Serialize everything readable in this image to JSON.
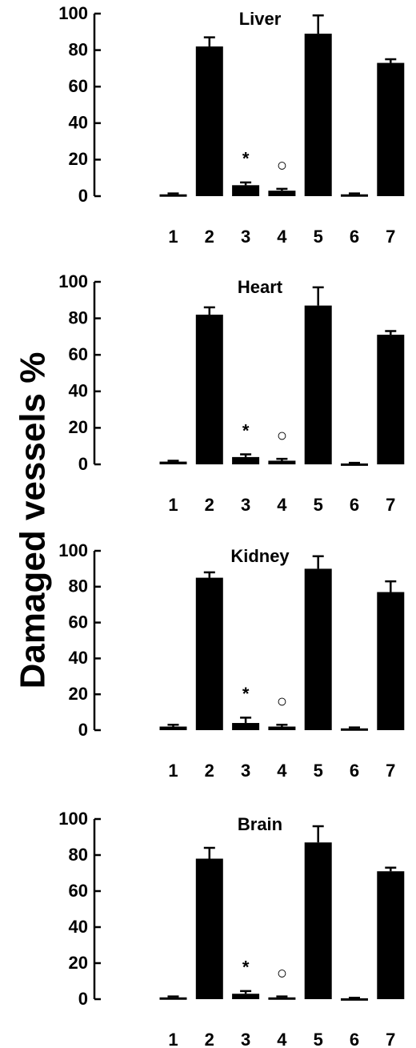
{
  "ylabel": "Damaged vessels %",
  "chart_data": [
    {
      "type": "bar",
      "title": "Liver",
      "categories": [
        "1",
        "2",
        "3",
        "4",
        "5",
        "6",
        "7"
      ],
      "values": [
        1,
        82,
        6,
        3,
        89,
        1,
        73
      ],
      "errors": [
        0.5,
        5,
        1.5,
        1,
        10,
        0.5,
        2
      ],
      "color": "#000000",
      "ylim": [
        0,
        100
      ],
      "yticks": [
        0,
        20,
        40,
        60,
        80,
        100
      ],
      "annotations": [
        {
          "text": "*",
          "x": "3"
        },
        {
          "text": "○",
          "x": "4"
        }
      ]
    },
    {
      "type": "bar",
      "title": "Heart",
      "categories": [
        "1",
        "2",
        "3",
        "4",
        "5",
        "6",
        "7"
      ],
      "values": [
        1.5,
        82,
        4,
        2,
        87,
        0.5,
        71
      ],
      "errors": [
        0.5,
        4,
        1.5,
        1,
        10,
        0.3,
        2
      ],
      "color": "#000000",
      "ylim": [
        0,
        100
      ],
      "yticks": [
        0,
        20,
        40,
        60,
        80,
        100
      ],
      "annotations": [
        {
          "text": "*",
          "x": "3"
        },
        {
          "text": "○",
          "x": "4"
        }
      ]
    },
    {
      "type": "bar",
      "title": "Kidney",
      "categories": [
        "1",
        "2",
        "3",
        "4",
        "5",
        "6",
        "7"
      ],
      "values": [
        2,
        85,
        4,
        2,
        90,
        1,
        77
      ],
      "errors": [
        1,
        3,
        3,
        1,
        7,
        0.5,
        6
      ],
      "color": "#000000",
      "ylim": [
        0,
        100
      ],
      "yticks": [
        0,
        20,
        40,
        60,
        80,
        100
      ],
      "annotations": [
        {
          "text": "*",
          "x": "3"
        },
        {
          "text": "○",
          "x": "4"
        }
      ]
    },
    {
      "type": "bar",
      "title": "Brain",
      "categories": [
        "1",
        "2",
        "3",
        "4",
        "5",
        "6",
        "7"
      ],
      "values": [
        1,
        78,
        3,
        1,
        87,
        0.5,
        71
      ],
      "errors": [
        0.5,
        6,
        1.5,
        0.5,
        9,
        0.3,
        2
      ],
      "color": "#000000",
      "ylim": [
        0,
        100
      ],
      "yticks": [
        0,
        20,
        40,
        60,
        80,
        100
      ],
      "annotations": [
        {
          "text": "*",
          "x": "3"
        },
        {
          "text": "○",
          "x": "4"
        }
      ]
    }
  ]
}
